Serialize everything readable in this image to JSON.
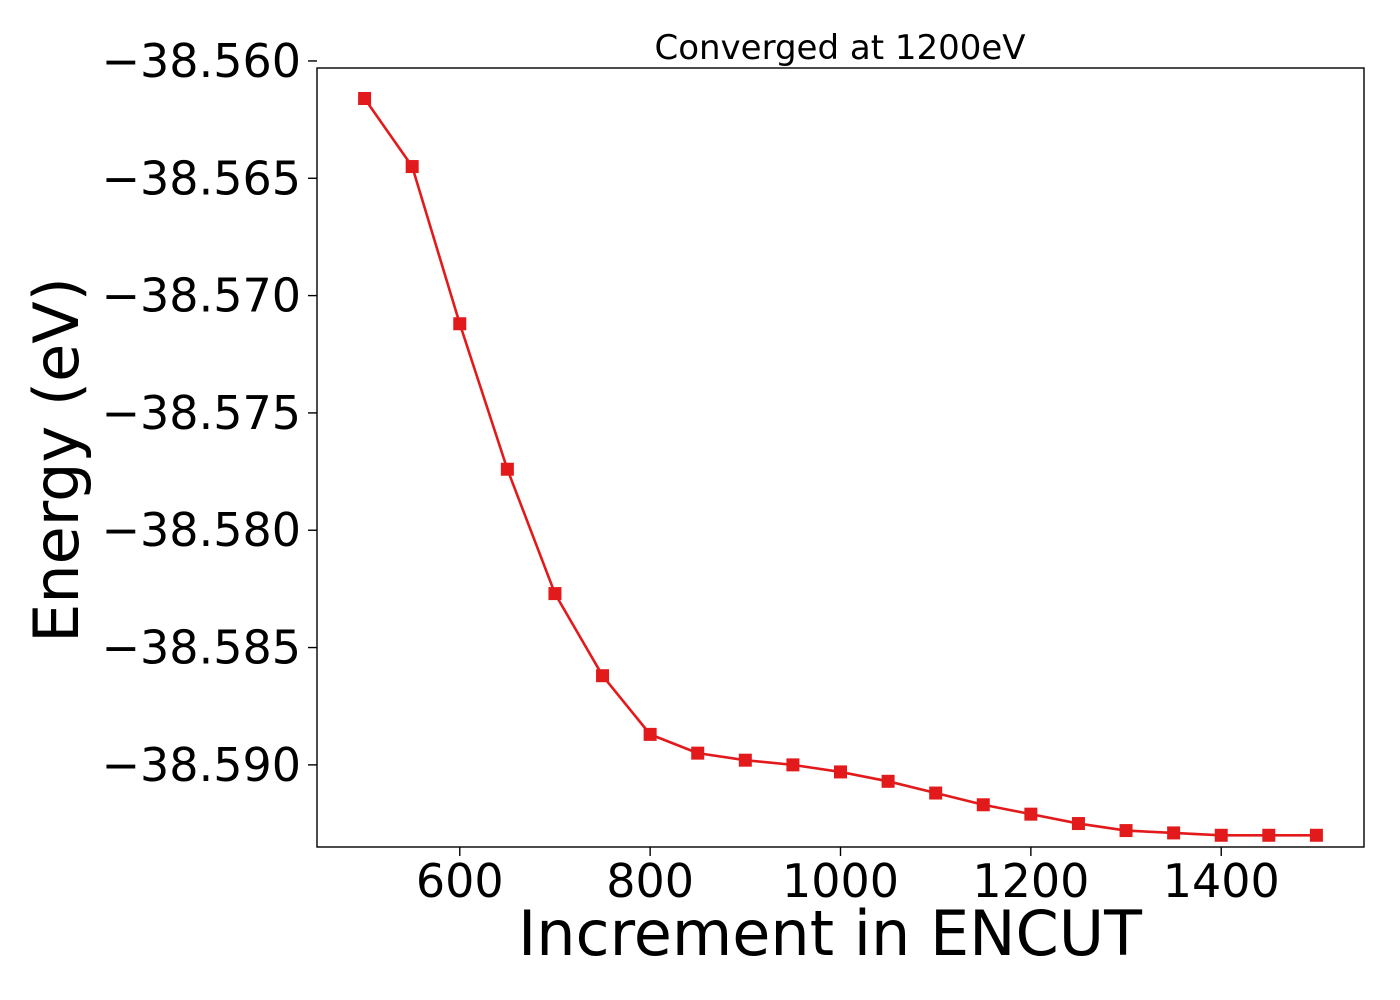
{
  "chart_data": {
    "type": "line",
    "title": "Converged at 1200eV",
    "xlabel": "Increment in ENCUT",
    "ylabel": "Energy (eV)",
    "xlim": [
      450,
      1550
    ],
    "ylim": [
      -38.5935,
      -38.5603
    ],
    "x_ticks": [
      600,
      800,
      1000,
      1200,
      1400
    ],
    "x_tick_labels": [
      "600",
      "800",
      "1000",
      "1200",
      "1400"
    ],
    "y_ticks": [
      -38.56,
      -38.565,
      -38.57,
      -38.575,
      -38.58,
      -38.585,
      -38.59
    ],
    "y_tick_labels": [
      "−38.560",
      "−38.565",
      "−38.570",
      "−38.575",
      "−38.580",
      "−38.585",
      "−38.590"
    ],
    "grid": false,
    "legend": "none",
    "series": [
      {
        "color": "#e31a1c",
        "marker": "square",
        "x": [
          500,
          550,
          600,
          650,
          700,
          750,
          800,
          850,
          900,
          950,
          1000,
          1050,
          1100,
          1150,
          1200,
          1250,
          1300,
          1350,
          1400,
          1450,
          1500
        ],
        "y": [
          -38.5616,
          -38.5645,
          -38.5712,
          -38.5774,
          -38.5827,
          -38.5862,
          -38.5887,
          -38.5895,
          -38.5898,
          -38.59,
          -38.5903,
          -38.5907,
          -38.5912,
          -38.5917,
          -38.5921,
          -38.5925,
          -38.5928,
          -38.5929,
          -38.593,
          -38.593,
          -38.593
        ]
      }
    ]
  }
}
